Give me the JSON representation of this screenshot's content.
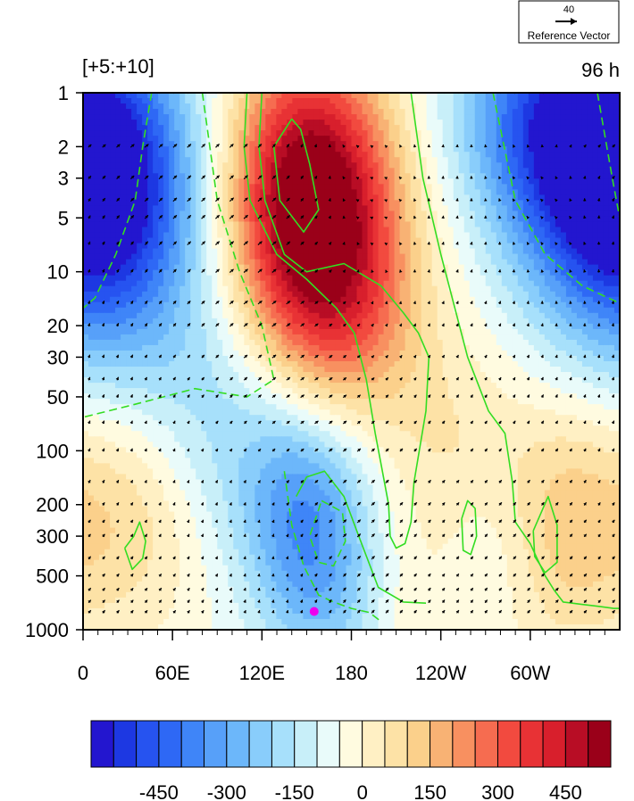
{
  "chart_data": {
    "type": "heatmap",
    "title_left": "[+5:+10]",
    "title_right": "96 h",
    "reference_vector": {
      "value": "40",
      "label": "Reference Vector"
    },
    "x": {
      "range_deg": [
        0,
        360
      ],
      "ticks": [
        {
          "deg": 0,
          "label": "0"
        },
        {
          "deg": 60,
          "label": "60E"
        },
        {
          "deg": 120,
          "label": "120E"
        },
        {
          "deg": 180,
          "label": "180"
        },
        {
          "deg": 240,
          "label": "120W"
        },
        {
          "deg": 300,
          "label": "60W"
        }
      ]
    },
    "y": {
      "scale": "log",
      "reversed": true,
      "range": [
        1,
        1000
      ],
      "ticks": [
        {
          "v": 1,
          "label": "1"
        },
        {
          "v": 2,
          "label": "2"
        },
        {
          "v": 3,
          "label": "3"
        },
        {
          "v": 5,
          "label": "5"
        },
        {
          "v": 10,
          "label": "10"
        },
        {
          "v": 20,
          "label": "20"
        },
        {
          "v": 30,
          "label": "30"
        },
        {
          "v": 50,
          "label": "50"
        },
        {
          "v": 100,
          "label": "100"
        },
        {
          "v": 200,
          "label": "200"
        },
        {
          "v": 300,
          "label": "300"
        },
        {
          "v": 500,
          "label": "500"
        },
        {
          "v": 1000,
          "label": "1000"
        }
      ]
    },
    "field_peaks": [
      {
        "lon": 152,
        "p": 3.5,
        "value": 620,
        "slon": 38,
        "sdec": 0.55
      },
      {
        "lon": 170,
        "p": 18,
        "value": 300,
        "slon": 40,
        "sdec": 0.5
      },
      {
        "lon": 18,
        "p": 4,
        "value": -400,
        "slon": 45,
        "sdec": 0.6
      },
      {
        "lon": 345,
        "p": 2.5,
        "value": -420,
        "slon": 45,
        "sdec": 0.55
      },
      {
        "lon": 300,
        "p": 1.2,
        "value": -200,
        "slon": 40,
        "sdec": 0.4
      },
      {
        "lon": 150,
        "p": 250,
        "value": -280,
        "slon": 30,
        "sdec": 0.45
      },
      {
        "lon": 170,
        "p": 800,
        "value": -120,
        "slon": 30,
        "sdec": 0.3
      },
      {
        "lon": 100,
        "p": 60,
        "value": -140,
        "slon": 60,
        "sdec": 0.5
      },
      {
        "lon": 30,
        "p": 200,
        "value": 160,
        "slon": 35,
        "sdec": 0.5
      },
      {
        "lon": 325,
        "p": 250,
        "value": 160,
        "slon": 30,
        "sdec": 0.5
      },
      {
        "lon": 250,
        "p": 120,
        "value": 100,
        "slon": 35,
        "sdec": 0.5
      },
      {
        "lon": 270,
        "p": 400,
        "value": -70,
        "slon": 25,
        "sdec": 0.35
      },
      {
        "lon": 210,
        "p": 800,
        "value": 60,
        "slon": 60,
        "sdec": 0.3
      }
    ],
    "contour_lines": [
      {
        "style": "solid",
        "points": [
          [
            120,
            1
          ],
          [
            118,
            2
          ],
          [
            122,
            4
          ],
          [
            135,
            8
          ],
          [
            150,
            10
          ],
          [
            175,
            9
          ],
          [
            200,
            12
          ],
          [
            215,
            17
          ],
          [
            225,
            22
          ],
          [
            232,
            30
          ],
          [
            230,
            60
          ],
          [
            222,
            150
          ],
          [
            220,
            250
          ],
          [
            216,
            330
          ],
          [
            210,
            350
          ],
          [
            206,
            300
          ],
          [
            205,
            200
          ],
          [
            200,
            120
          ],
          [
            196,
            80
          ],
          [
            190,
            40
          ],
          [
            182,
            22
          ],
          [
            170,
            16
          ],
          [
            150,
            11
          ],
          [
            130,
            8
          ],
          [
            112,
            4
          ],
          [
            108,
            2
          ],
          [
            110,
            1
          ]
        ]
      },
      {
        "style": "solid",
        "points": [
          [
            140,
            1.4
          ],
          [
            128,
            2
          ],
          [
            132,
            4
          ],
          [
            148,
            6
          ],
          [
            158,
            4.5
          ],
          [
            152,
            2.5
          ],
          [
            146,
            1.6
          ],
          [
            140,
            1.4
          ]
        ]
      },
      {
        "style": "solid",
        "points": [
          [
            220,
            1
          ],
          [
            228,
            3
          ],
          [
            240,
            8
          ],
          [
            258,
            30
          ],
          [
            272,
            60
          ],
          [
            283,
            80
          ],
          [
            288,
            150
          ],
          [
            290,
            250
          ],
          [
            300,
            330
          ],
          [
            310,
            500
          ],
          [
            316,
            600
          ],
          [
            322,
            700
          ],
          [
            334,
            720
          ],
          [
            346,
            740
          ],
          [
            356,
            760
          ],
          [
            360,
            760
          ]
        ]
      },
      {
        "style": "solid",
        "points": [
          [
            28,
            350
          ],
          [
            34,
            300
          ],
          [
            38,
            250
          ],
          [
            42,
            320
          ],
          [
            40,
            400
          ],
          [
            33,
            460
          ],
          [
            28,
            350
          ]
        ]
      },
      {
        "style": "solid",
        "points": [
          [
            254,
            240
          ],
          [
            258,
            190
          ],
          [
            263,
            210
          ],
          [
            264,
            300
          ],
          [
            260,
            380
          ],
          [
            255,
            360
          ],
          [
            254,
            240
          ]
        ]
      },
      {
        "style": "solid",
        "points": [
          [
            302,
            280
          ],
          [
            312,
            180
          ],
          [
            318,
            260
          ],
          [
            318,
            420
          ],
          [
            310,
            480
          ],
          [
            303,
            390
          ],
          [
            302,
            280
          ]
        ]
      },
      {
        "style": "solid",
        "points": [
          [
            143,
            180
          ],
          [
            150,
            140
          ],
          [
            162,
            130
          ],
          [
            175,
            180
          ],
          [
            185,
            300
          ],
          [
            198,
            580
          ],
          [
            215,
            700
          ],
          [
            230,
            710
          ]
        ]
      },
      {
        "style": "dashed",
        "points": [
          [
            46,
            1
          ],
          [
            40,
            2
          ],
          [
            35,
            4
          ],
          [
            22,
            8
          ],
          [
            8,
            14
          ],
          [
            0,
            16
          ]
        ]
      },
      {
        "style": "dashed",
        "points": [
          [
            80,
            1
          ],
          [
            90,
            4
          ],
          [
            105,
            10
          ],
          [
            120,
            20
          ],
          [
            128,
            40
          ],
          [
            110,
            50
          ],
          [
            75,
            45
          ],
          [
            35,
            55
          ],
          [
            0,
            65
          ]
        ]
      },
      {
        "style": "dashed",
        "points": [
          [
            275,
            1
          ],
          [
            290,
            4
          ],
          [
            310,
            8
          ],
          [
            335,
            12
          ],
          [
            360,
            15
          ]
        ]
      },
      {
        "style": "dashed",
        "points": [
          [
            345,
            1
          ],
          [
            355,
            3
          ],
          [
            360,
            5
          ]
        ]
      },
      {
        "style": "dashed",
        "points": [
          [
            135,
            130
          ],
          [
            140,
            260
          ],
          [
            148,
            440
          ],
          [
            158,
            640
          ],
          [
            168,
            700
          ],
          [
            180,
            760
          ],
          [
            192,
            800
          ],
          [
            200,
            900
          ]
        ]
      },
      {
        "style": "dashed",
        "points": [
          [
            160,
            190
          ],
          [
            174,
            220
          ],
          [
            176,
            320
          ],
          [
            168,
            440
          ],
          [
            158,
            420
          ],
          [
            152,
            300
          ],
          [
            160,
            190
          ]
        ]
      }
    ],
    "marker": {
      "lon": 155,
      "p": 790,
      "color": "#ee00ee"
    },
    "colorbar": {
      "levels": [
        -550,
        -500,
        -450,
        -400,
        -350,
        -300,
        -250,
        -200,
        -150,
        -100,
        -50,
        0,
        50,
        100,
        150,
        200,
        250,
        300,
        350,
        400,
        450,
        500,
        550
      ],
      "colors": [
        "#2316cf",
        "#1d38e2",
        "#2653f0",
        "#2e68f5",
        "#3f85f8",
        "#57a0f9",
        "#6cb7fa",
        "#89cdfb",
        "#a7e0fb",
        "#c8eff9",
        "#e9fbfa",
        "#fffbe0",
        "#fff0c4",
        "#fde2a6",
        "#fbd08b",
        "#f8b274",
        "#f89060",
        "#f66c50",
        "#f24a3f",
        "#e83235",
        "#d81f2c",
        "#b80d25",
        "#9a0019"
      ],
      "tick_labels": [
        {
          "v": -450,
          "label": "-450"
        },
        {
          "v": -300,
          "label": "-300"
        },
        {
          "v": -150,
          "label": "-150"
        },
        {
          "v": 0,
          "label": "0"
        },
        {
          "v": 150,
          "label": "150"
        },
        {
          "v": 300,
          "label": "300"
        },
        {
          "v": 450,
          "label": "450"
        }
      ]
    },
    "vector_color": "#000000",
    "contour_color": "#33dd22"
  }
}
